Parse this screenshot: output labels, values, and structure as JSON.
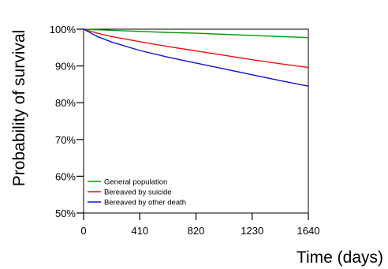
{
  "chart_data": {
    "type": "line",
    "title": "",
    "xlabel": "Time (days)",
    "ylabel": "Probability of survival",
    "xlim": [
      0,
      1640
    ],
    "ylim": [
      50,
      100
    ],
    "x_ticks": [
      0,
      410,
      820,
      1230,
      1640
    ],
    "x_tick_labels": [
      "0",
      "410",
      "820",
      "1230",
      "1640"
    ],
    "y_ticks": [
      50,
      60,
      70,
      80,
      90,
      100
    ],
    "y_tick_labels": [
      "50%",
      "60%",
      "70%",
      "80%",
      "90%",
      "100%"
    ],
    "grid": false,
    "legend_position": "bottom-left",
    "series": [
      {
        "name": "General population",
        "color": "#009900",
        "x": [
          0,
          205,
          410,
          615,
          820,
          1025,
          1230,
          1435,
          1640
        ],
        "y": [
          100,
          99.7,
          99.4,
          99.1,
          98.9,
          98.6,
          98.3,
          98.0,
          97.7
        ]
      },
      {
        "name": "Bereaved by suicide",
        "color": "#ee1111",
        "x": [
          0,
          100,
          205,
          410,
          615,
          820,
          1025,
          1230,
          1435,
          1640
        ],
        "y": [
          100,
          98.9,
          98.0,
          96.6,
          95.3,
          94.1,
          92.9,
          91.7,
          90.6,
          89.6
        ]
      },
      {
        "name": "Bereaved by other death",
        "color": "#1111dd",
        "x": [
          0,
          100,
          205,
          410,
          615,
          820,
          1025,
          1230,
          1435,
          1640
        ],
        "y": [
          100,
          98.0,
          96.5,
          94.2,
          92.4,
          90.8,
          89.2,
          87.6,
          86.0,
          84.5
        ]
      }
    ]
  }
}
